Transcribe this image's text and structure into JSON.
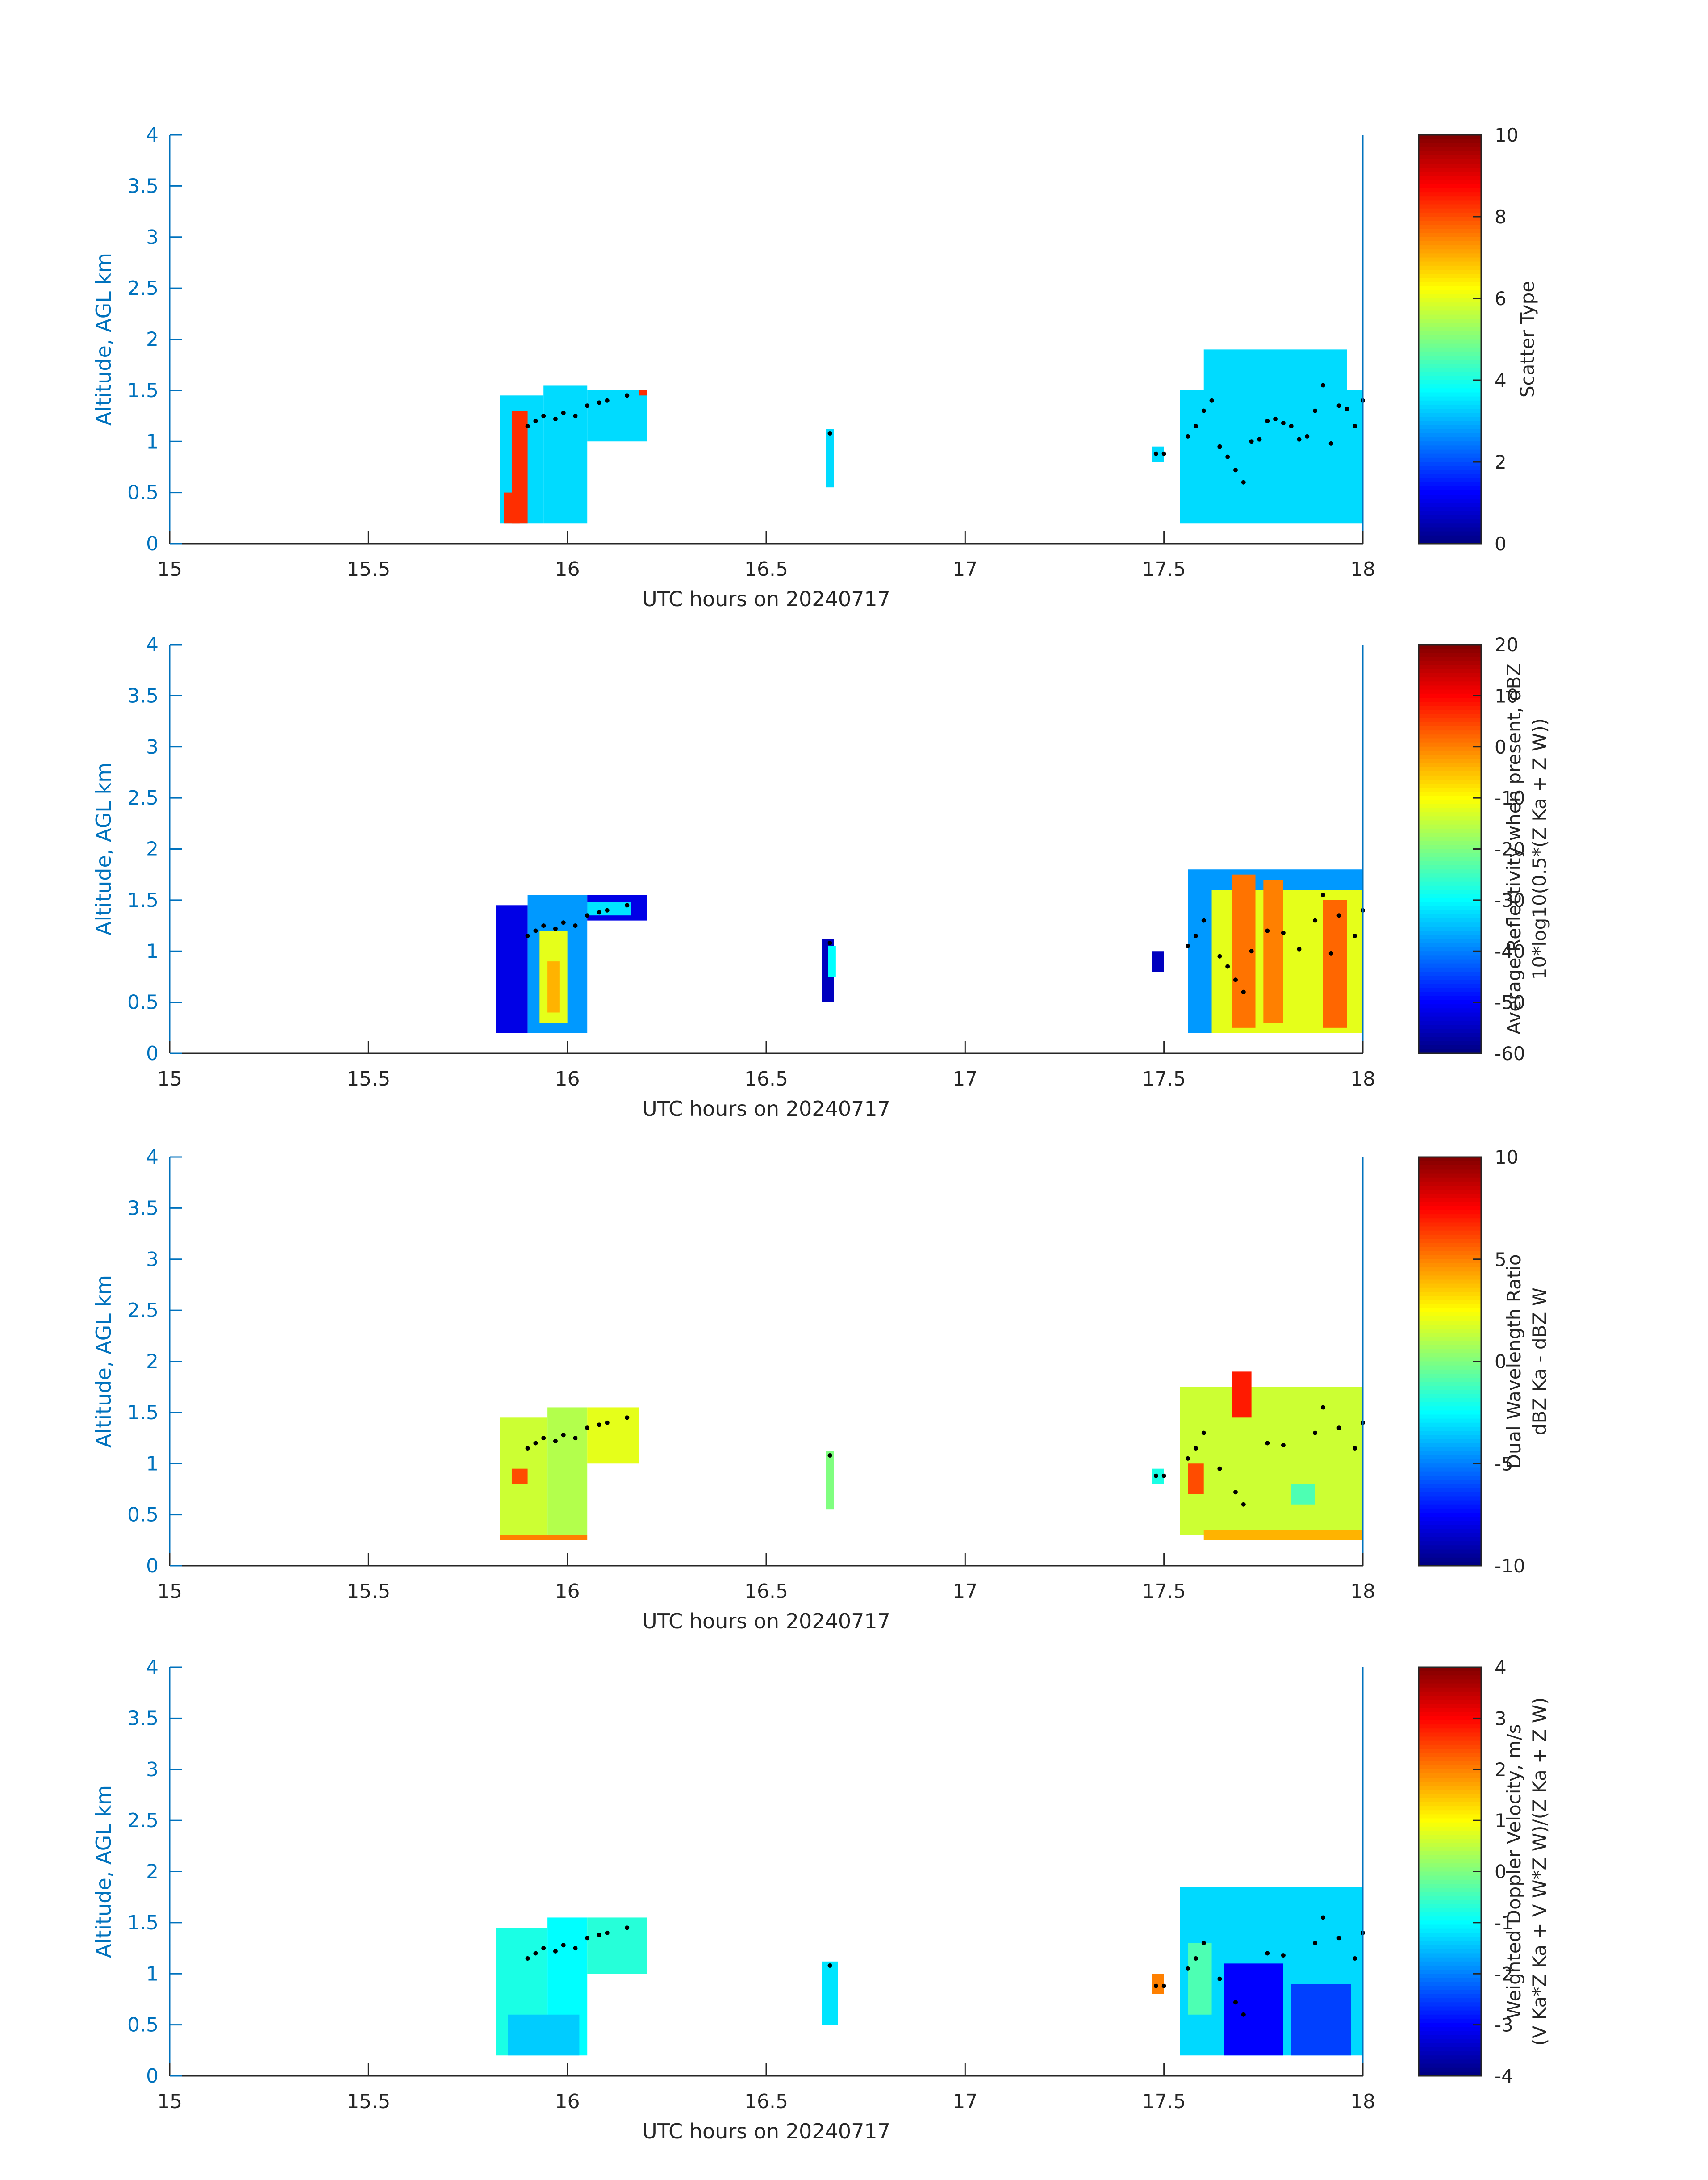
{
  "figure": {
    "date_label": "20240717"
  },
  "chart_data": [
    {
      "type": "heatmap",
      "title": "",
      "xlabel": "UTC hours on 20240717",
      "ylabel": "Altitude, AGL km",
      "xlim": [
        15,
        18
      ],
      "ylim": [
        0,
        4
      ],
      "xticks": [
        "15",
        "15.5",
        "16",
        "16.5",
        "17",
        "17.5",
        "18"
      ],
      "yticks": [
        "0",
        "0.5",
        "1",
        "1.5",
        "2",
        "2.5",
        "3",
        "3.5",
        "4"
      ],
      "colorbar": {
        "colormap": "jet",
        "range": [
          0,
          10
        ],
        "ticks": [
          "0",
          "2",
          "4",
          "6",
          "8",
          "10"
        ],
        "label_lines": [
          "Scatter Type"
        ]
      },
      "regions": [
        {
          "x": [
            15.83,
            15.94
          ],
          "y": [
            0.2,
            1.45
          ],
          "value": 3.4
        },
        {
          "x": [
            15.94,
            16.05
          ],
          "y": [
            0.2,
            1.55
          ],
          "value": 3.4
        },
        {
          "x": [
            16.05,
            16.2
          ],
          "y": [
            1.0,
            1.5
          ],
          "value": 3.4
        },
        {
          "x": [
            15.84,
            15.88
          ],
          "y": [
            0.2,
            0.5
          ],
          "value": 8.3
        },
        {
          "x": [
            15.86,
            15.9
          ],
          "y": [
            0.2,
            1.3
          ],
          "value": 8.3
        },
        {
          "x": [
            16.18,
            16.2
          ],
          "y": [
            1.45,
            1.5
          ],
          "value": 8.3
        },
        {
          "x": [
            16.65,
            16.67
          ],
          "y": [
            0.55,
            1.12
          ],
          "value": 3.4
        },
        {
          "x": [
            17.47,
            17.5
          ],
          "y": [
            0.8,
            0.95
          ],
          "value": 3.4
        },
        {
          "x": [
            17.54,
            18.0
          ],
          "y": [
            0.2,
            1.5
          ],
          "value": 3.4
        },
        {
          "x": [
            17.6,
            17.96
          ],
          "y": [
            1.5,
            1.9
          ],
          "value": 3.4
        }
      ],
      "markers": [
        [
          15.9,
          1.15
        ],
        [
          15.92,
          1.2
        ],
        [
          15.94,
          1.25
        ],
        [
          15.97,
          1.22
        ],
        [
          15.99,
          1.28
        ],
        [
          16.02,
          1.25
        ],
        [
          16.05,
          1.35
        ],
        [
          16.08,
          1.38
        ],
        [
          16.1,
          1.4
        ],
        [
          16.15,
          1.45
        ],
        [
          16.66,
          1.08
        ],
        [
          17.48,
          0.88
        ],
        [
          17.5,
          0.88
        ],
        [
          17.56,
          1.05
        ],
        [
          17.58,
          1.15
        ],
        [
          17.6,
          1.3
        ],
        [
          17.62,
          1.4
        ],
        [
          17.64,
          0.95
        ],
        [
          17.66,
          0.85
        ],
        [
          17.68,
          0.72
        ],
        [
          17.7,
          0.6
        ],
        [
          17.72,
          1.0
        ],
        [
          17.74,
          1.02
        ],
        [
          17.76,
          1.2
        ],
        [
          17.78,
          1.22
        ],
        [
          17.8,
          1.18
        ],
        [
          17.82,
          1.15
        ],
        [
          17.84,
          1.02
        ],
        [
          17.86,
          1.05
        ],
        [
          17.88,
          1.3
        ],
        [
          17.9,
          1.55
        ],
        [
          17.92,
          0.98
        ],
        [
          17.94,
          1.35
        ],
        [
          17.96,
          1.32
        ],
        [
          17.98,
          1.15
        ],
        [
          18.0,
          1.4
        ]
      ]
    },
    {
      "type": "heatmap",
      "title": "",
      "xlabel": "UTC hours on 20240717",
      "ylabel": "Altitude, AGL km",
      "xlim": [
        15,
        18
      ],
      "ylim": [
        0,
        4
      ],
      "xticks": [
        "15",
        "15.5",
        "16",
        "16.5",
        "17",
        "17.5",
        "18"
      ],
      "yticks": [
        "0",
        "0.5",
        "1",
        "1.5",
        "2",
        "2.5",
        "3",
        "3.5",
        "4"
      ],
      "colorbar": {
        "colormap": "jet",
        "range": [
          -60,
          20
        ],
        "ticks": [
          "-60",
          "-50",
          "-40",
          "-30",
          "-20",
          "-10",
          "0",
          "10",
          "20"
        ],
        "label_lines": [
          "Average Reflectivity when present, dBZ",
          "10*log10(0.5*(Z Ka + Z W))"
        ]
      },
      "regions": [
        {
          "x": [
            15.82,
            15.9
          ],
          "y": [
            0.2,
            1.45
          ],
          "value": -52
        },
        {
          "x": [
            15.9,
            16.05
          ],
          "y": [
            0.2,
            1.55
          ],
          "value": -38
        },
        {
          "x": [
            15.93,
            16.0
          ],
          "y": [
            0.3,
            1.2
          ],
          "value": -12
        },
        {
          "x": [
            15.95,
            15.98
          ],
          "y": [
            0.4,
            0.9
          ],
          "value": -4
        },
        {
          "x": [
            16.05,
            16.2
          ],
          "y": [
            1.3,
            1.55
          ],
          "value": -52
        },
        {
          "x": [
            16.05,
            16.16
          ],
          "y": [
            1.35,
            1.48
          ],
          "value": -32
        },
        {
          "x": [
            16.64,
            16.67
          ],
          "y": [
            0.5,
            1.12
          ],
          "value": -55
        },
        {
          "x": [
            16.655,
            16.675
          ],
          "y": [
            0.75,
            1.05
          ],
          "value": -30
        },
        {
          "x": [
            17.47,
            17.5
          ],
          "y": [
            0.8,
            1.0
          ],
          "value": -55
        },
        {
          "x": [
            17.56,
            18.0
          ],
          "y": [
            0.2,
            1.8
          ],
          "value": -38
        },
        {
          "x": [
            17.62,
            18.0
          ],
          "y": [
            0.2,
            1.6
          ],
          "value": -12
        },
        {
          "x": [
            17.67,
            17.73
          ],
          "y": [
            0.25,
            1.75
          ],
          "value": 1
        },
        {
          "x": [
            17.75,
            17.8
          ],
          "y": [
            0.3,
            1.7
          ],
          "value": 0
        },
        {
          "x": [
            17.9,
            17.96
          ],
          "y": [
            0.25,
            1.5
          ],
          "value": 2
        }
      ],
      "markers": [
        [
          15.9,
          1.15
        ],
        [
          15.92,
          1.2
        ],
        [
          15.94,
          1.25
        ],
        [
          15.97,
          1.22
        ],
        [
          15.99,
          1.28
        ],
        [
          16.02,
          1.25
        ],
        [
          16.05,
          1.35
        ],
        [
          16.08,
          1.38
        ],
        [
          16.1,
          1.4
        ],
        [
          16.15,
          1.45
        ],
        [
          16.66,
          1.08
        ],
        [
          17.56,
          1.05
        ],
        [
          17.58,
          1.15
        ],
        [
          17.6,
          1.3
        ],
        [
          17.64,
          0.95
        ],
        [
          17.66,
          0.85
        ],
        [
          17.68,
          0.72
        ],
        [
          17.7,
          0.6
        ],
        [
          17.72,
          1.0
        ],
        [
          17.76,
          1.2
        ],
        [
          17.8,
          1.18
        ],
        [
          17.84,
          1.02
        ],
        [
          17.88,
          1.3
        ],
        [
          17.9,
          1.55
        ],
        [
          17.92,
          0.98
        ],
        [
          17.94,
          1.35
        ],
        [
          17.98,
          1.15
        ],
        [
          18.0,
          1.4
        ]
      ]
    },
    {
      "type": "heatmap",
      "title": "",
      "xlabel": "UTC hours on 20240717",
      "ylabel": "Altitude, AGL km",
      "xlim": [
        15,
        18
      ],
      "ylim": [
        0,
        4
      ],
      "xticks": [
        "15",
        "15.5",
        "16",
        "16.5",
        "17",
        "17.5",
        "18"
      ],
      "yticks": [
        "0",
        "0.5",
        "1",
        "1.5",
        "2",
        "2.5",
        "3",
        "3.5",
        "4"
      ],
      "colorbar": {
        "colormap": "jet",
        "range": [
          -10,
          10
        ],
        "ticks": [
          "-10",
          "-5",
          "0",
          "5",
          "10"
        ],
        "label_lines": [
          "Dual Wavelength Ratio",
          "dBZ Ka - dBZ W"
        ]
      },
      "regions": [
        {
          "x": [
            15.83,
            15.95
          ],
          "y": [
            0.3,
            1.45
          ],
          "value": 1.5
        },
        {
          "x": [
            15.95,
            16.05
          ],
          "y": [
            0.3,
            1.55
          ],
          "value": 1
        },
        {
          "x": [
            16.05,
            16.18
          ],
          "y": [
            1.0,
            1.55
          ],
          "value": 2
        },
        {
          "x": [
            15.83,
            16.05
          ],
          "y": [
            0.25,
            0.3
          ],
          "value": 5
        },
        {
          "x": [
            15.86,
            15.9
          ],
          "y": [
            0.8,
            0.95
          ],
          "value": 6
        },
        {
          "x": [
            16.65,
            16.67
          ],
          "y": [
            0.55,
            1.12
          ],
          "value": 0
        },
        {
          "x": [
            17.47,
            17.5
          ],
          "y": [
            0.8,
            0.95
          ],
          "value": -2
        },
        {
          "x": [
            17.54,
            18.0
          ],
          "y": [
            0.3,
            1.75
          ],
          "value": 1.5
        },
        {
          "x": [
            17.6,
            18.0
          ],
          "y": [
            0.25,
            0.35
          ],
          "value": 4
        },
        {
          "x": [
            17.67,
            17.72
          ],
          "y": [
            1.45,
            1.9
          ],
          "value": 7
        },
        {
          "x": [
            17.56,
            17.6
          ],
          "y": [
            0.7,
            1.0
          ],
          "value": 6
        },
        {
          "x": [
            17.82,
            17.88
          ],
          "y": [
            0.6,
            0.8
          ],
          "value": -1
        }
      ],
      "markers": [
        [
          15.9,
          1.15
        ],
        [
          15.92,
          1.2
        ],
        [
          15.94,
          1.25
        ],
        [
          15.97,
          1.22
        ],
        [
          15.99,
          1.28
        ],
        [
          16.02,
          1.25
        ],
        [
          16.05,
          1.35
        ],
        [
          16.08,
          1.38
        ],
        [
          16.1,
          1.4
        ],
        [
          16.15,
          1.45
        ],
        [
          16.66,
          1.08
        ],
        [
          17.48,
          0.88
        ],
        [
          17.5,
          0.88
        ],
        [
          17.56,
          1.05
        ],
        [
          17.58,
          1.15
        ],
        [
          17.6,
          1.3
        ],
        [
          17.64,
          0.95
        ],
        [
          17.68,
          0.72
        ],
        [
          17.7,
          0.6
        ],
        [
          17.76,
          1.2
        ],
        [
          17.8,
          1.18
        ],
        [
          17.88,
          1.3
        ],
        [
          17.9,
          1.55
        ],
        [
          17.94,
          1.35
        ],
        [
          17.98,
          1.15
        ],
        [
          18.0,
          1.4
        ]
      ]
    },
    {
      "type": "heatmap",
      "title": "",
      "xlabel": "UTC hours on 20240717",
      "ylabel": "Altitude, AGL km",
      "xlim": [
        15,
        18
      ],
      "ylim": [
        0,
        4
      ],
      "xticks": [
        "15",
        "15.5",
        "16",
        "16.5",
        "17",
        "17.5",
        "18"
      ],
      "yticks": [
        "0",
        "0.5",
        "1",
        "1.5",
        "2",
        "2.5",
        "3",
        "3.5",
        "4"
      ],
      "colorbar": {
        "colormap": "jet",
        "range": [
          -4,
          4
        ],
        "ticks": [
          "-4",
          "-3",
          "-2",
          "-1",
          "0",
          "1",
          "2",
          "3",
          "4"
        ],
        "label_lines": [
          "Weighted Doppler Velocity, m/s",
          "(V Ka*Z Ka + V W*Z W)/(Z Ka + Z W)"
        ]
      },
      "regions": [
        {
          "x": [
            15.82,
            15.95
          ],
          "y": [
            0.2,
            1.45
          ],
          "value": -0.8
        },
        {
          "x": [
            15.95,
            16.05
          ],
          "y": [
            0.2,
            1.55
          ],
          "value": -1.0
        },
        {
          "x": [
            16.05,
            16.2
          ],
          "y": [
            1.0,
            1.55
          ],
          "value": -0.7
        },
        {
          "x": [
            15.85,
            16.03
          ],
          "y": [
            0.2,
            0.6
          ],
          "value": -1.4
        },
        {
          "x": [
            16.64,
            16.68
          ],
          "y": [
            0.5,
            1.12
          ],
          "value": -1.2
        },
        {
          "x": [
            17.47,
            17.5
          ],
          "y": [
            0.8,
            1.0
          ],
          "value": 2.0
        },
        {
          "x": [
            17.54,
            18.0
          ],
          "y": [
            0.2,
            1.85
          ],
          "value": -1.3
        },
        {
          "x": [
            17.65,
            17.8
          ],
          "y": [
            0.2,
            1.1
          ],
          "value": -3.0
        },
        {
          "x": [
            17.82,
            17.97
          ],
          "y": [
            0.2,
            0.9
          ],
          "value": -2.5
        },
        {
          "x": [
            17.56,
            17.62
          ],
          "y": [
            0.6,
            1.3
          ],
          "value": -0.4
        }
      ],
      "markers": [
        [
          15.9,
          1.15
        ],
        [
          15.92,
          1.2
        ],
        [
          15.94,
          1.25
        ],
        [
          15.97,
          1.22
        ],
        [
          15.99,
          1.28
        ],
        [
          16.02,
          1.25
        ],
        [
          16.05,
          1.35
        ],
        [
          16.08,
          1.38
        ],
        [
          16.1,
          1.4
        ],
        [
          16.15,
          1.45
        ],
        [
          16.66,
          1.08
        ],
        [
          17.48,
          0.88
        ],
        [
          17.5,
          0.88
        ],
        [
          17.56,
          1.05
        ],
        [
          17.58,
          1.15
        ],
        [
          17.6,
          1.3
        ],
        [
          17.64,
          0.95
        ],
        [
          17.68,
          0.72
        ],
        [
          17.7,
          0.6
        ],
        [
          17.76,
          1.2
        ],
        [
          17.8,
          1.18
        ],
        [
          17.88,
          1.3
        ],
        [
          17.9,
          1.55
        ],
        [
          17.94,
          1.35
        ],
        [
          17.98,
          1.15
        ],
        [
          18.0,
          1.4
        ]
      ]
    }
  ]
}
